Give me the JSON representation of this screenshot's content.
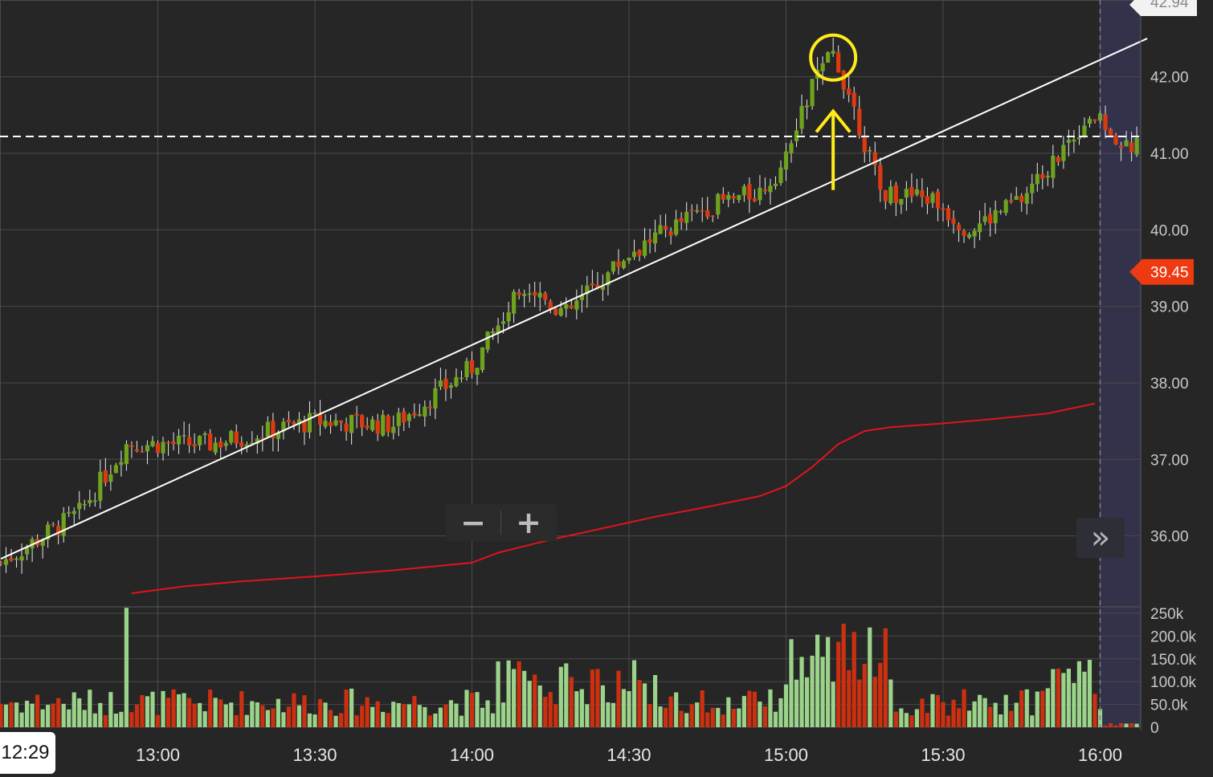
{
  "chart_data": {
    "type": "candlestick",
    "interval": "1 minute",
    "price_axis": {
      "ylim": [
        35.2,
        42.94
      ],
      "ticks": [
        36.0,
        37.0,
        38.0,
        39.0,
        40.0,
        41.0,
        42.0
      ],
      "tick_labels": [
        "36.00",
        "37.00",
        "38.00",
        "39.00",
        "40.00",
        "41.00",
        "42.00"
      ],
      "top_label": "42.94",
      "current_price_label": "39.45",
      "current_price": 39.45
    },
    "volume_axis": {
      "ylim": [
        0,
        260000
      ],
      "ticks": [
        0,
        50000,
        100000,
        150000,
        200000,
        250000
      ],
      "tick_labels": [
        "0",
        "50.0k",
        "100.0k",
        "150.0k",
        "200.0k",
        "250k"
      ]
    },
    "time_axis": {
      "ticks": [
        "13:00",
        "13:30",
        "14:00",
        "14:30",
        "15:00",
        "15:30",
        "16:00"
      ],
      "crosshair_label": "12:29"
    },
    "session_end": "16:00",
    "horizontal_dashed_level": 41.22,
    "trendline": [
      {
        "t": "12:30",
        "price": 35.7
      },
      {
        "t": "16:09",
        "price": 42.5
      }
    ],
    "moving_average": [
      {
        "t": "12:55",
        "price": 35.25
      },
      {
        "t": "13:05",
        "price": 35.34
      },
      {
        "t": "13:15",
        "price": 35.4
      },
      {
        "t": "13:30",
        "price": 35.47
      },
      {
        "t": "13:45",
        "price": 35.55
      },
      {
        "t": "14:00",
        "price": 35.65
      },
      {
        "t": "14:05",
        "price": 35.78
      },
      {
        "t": "14:15",
        "price": 35.95
      },
      {
        "t": "14:25",
        "price": 36.1
      },
      {
        "t": "14:35",
        "price": 36.25
      },
      {
        "t": "14:45",
        "price": 36.38
      },
      {
        "t": "14:55",
        "price": 36.52
      },
      {
        "t": "15:00",
        "price": 36.65
      },
      {
        "t": "15:05",
        "price": 36.9
      },
      {
        "t": "15:10",
        "price": 37.2
      },
      {
        "t": "15:15",
        "price": 37.37
      },
      {
        "t": "15:20",
        "price": 37.42
      },
      {
        "t": "15:30",
        "price": 37.47
      },
      {
        "t": "15:40",
        "price": 37.53
      },
      {
        "t": "15:50",
        "price": 37.6
      },
      {
        "t": "15:59",
        "price": 37.73
      }
    ],
    "annotations": [
      {
        "type": "circle",
        "t": "15:09",
        "price": 42.25,
        "color": "#ffeb1a"
      },
      {
        "type": "arrow-up",
        "t": "15:09",
        "from_price": 40.52,
        "to_price": 41.55,
        "color": "#ffeb1a"
      }
    ],
    "key_points": [
      {
        "t": "12:30",
        "close": 35.65
      },
      {
        "t": "12:45",
        "close": 36.3
      },
      {
        "t": "12:54",
        "close": 37.2
      },
      {
        "t": "13:10",
        "close": 37.2
      },
      {
        "t": "13:30",
        "close": 37.5
      },
      {
        "t": "13:45",
        "close": 37.45
      },
      {
        "t": "14:00",
        "close": 38.2
      },
      {
        "t": "14:10",
        "close": 39.3
      },
      {
        "t": "14:18",
        "close": 38.9
      },
      {
        "t": "14:30",
        "close": 39.7
      },
      {
        "t": "14:45",
        "close": 40.3
      },
      {
        "t": "14:55",
        "close": 40.5
      },
      {
        "t": "15:00",
        "close": 40.9
      },
      {
        "t": "15:05",
        "close": 41.9
      },
      {
        "t": "15:09",
        "close": 42.3
      },
      {
        "t": "15:12",
        "close": 41.8
      },
      {
        "t": "15:18",
        "close": 40.5
      },
      {
        "t": "15:28",
        "close": 40.4
      },
      {
        "t": "15:35",
        "close": 40.0
      },
      {
        "t": "15:45",
        "close": 40.4
      },
      {
        "t": "15:58",
        "close": 41.5
      },
      {
        "t": "16:05",
        "close": 41.1
      }
    ],
    "colors": {
      "background": "#262626",
      "grid": "#4a4a4a",
      "up": "#6fa31e",
      "down": "#dd3a12",
      "volume_up": "#9cd38a",
      "volume_down": "#cc3010",
      "moving_average": "#e0141c",
      "trendline": "#ffffff",
      "annotation": "#ffeb1a",
      "after_hours_shade": "#32324a",
      "price_tag": "#ee3a10"
    }
  },
  "ui": {
    "zoom_out_symbol": "−",
    "zoom_in_symbol": "+",
    "scroll_forward_symbol": "»"
  }
}
